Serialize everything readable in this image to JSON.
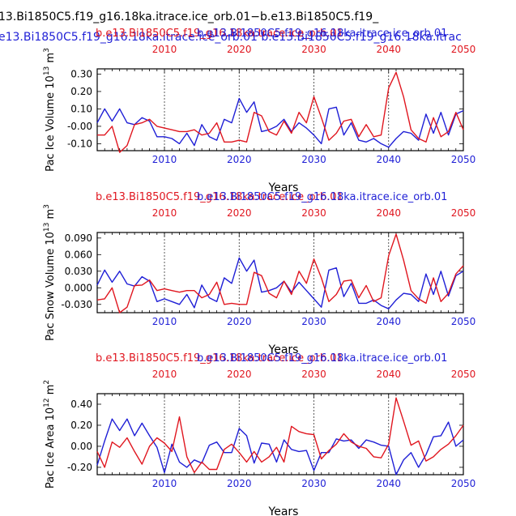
{
  "figure": {
    "title_line1": "13.Bi1850C5.f19_g16.18ka.itrace.ice_orb.01−b.e13.Bi1850C5.f19_",
    "title_line2": "e13.Bi1850C5.f19_g16.18ka.itrace.ice_orb.01 b.e13.Bi1850C5.f19_g16.18ka.itrac"
  },
  "colors": {
    "blue": "#1f1fd6",
    "red": "#e0161f",
    "black": "#000000"
  },
  "chart_data": [
    {
      "type": "line",
      "title_red": "b.e13.Bi1850C5.f19_g16.18ka.trace.ice_orb.01",
      "title_blue": "b.e13.Bi1850C5.f19_g16.18ka.itrace.ice_orb.01",
      "ylabel": "Pac Ice Volume 10",
      "ylabel_sup": "13",
      "ylabel_unit": " m",
      "ylabel_unit_sup": "3",
      "xlabel": "Years",
      "xlim": [
        2001,
        2050
      ],
      "ylim": [
        -0.14,
        0.33
      ],
      "yticks": [
        "-0.10",
        "-0.00",
        "0.10",
        "0.20",
        "0.30"
      ],
      "ytick_values": [
        -0.1,
        0.0,
        0.1,
        0.2,
        0.3
      ],
      "xticks": [
        "2010",
        "2020",
        "2030",
        "2040",
        "2050"
      ],
      "xtick_values": [
        2010,
        2020,
        2030,
        2040,
        2050
      ],
      "x": [
        2001,
        2002,
        2003,
        2004,
        2005,
        2006,
        2007,
        2008,
        2009,
        2010,
        2011,
        2012,
        2013,
        2014,
        2015,
        2016,
        2017,
        2018,
        2019,
        2020,
        2021,
        2022,
        2023,
        2024,
        2025,
        2026,
        2027,
        2028,
        2029,
        2030,
        2031,
        2032,
        2033,
        2034,
        2035,
        2036,
        2037,
        2038,
        2039,
        2040,
        2041,
        2042,
        2043,
        2044,
        2045,
        2046,
        2047,
        2048,
        2049,
        2050
      ],
      "series": [
        {
          "name": "blue",
          "color": "#1f1fd6",
          "values": [
            0.02,
            0.1,
            0.03,
            0.1,
            0.02,
            0.01,
            0.05,
            0.03,
            -0.06,
            -0.06,
            -0.07,
            -0.1,
            -0.04,
            -0.11,
            0.01,
            -0.06,
            -0.08,
            0.04,
            0.02,
            0.16,
            0.08,
            0.14,
            -0.03,
            -0.02,
            0.0,
            0.04,
            -0.03,
            0.02,
            -0.01,
            -0.05,
            -0.1,
            0.1,
            0.11,
            -0.05,
            0.02,
            -0.08,
            -0.09,
            -0.07,
            -0.1,
            -0.12,
            -0.07,
            -0.03,
            -0.04,
            -0.08,
            0.07,
            -0.04,
            0.08,
            -0.05,
            0.07,
            0.09
          ]
        },
        {
          "name": "red",
          "color": "#e0161f",
          "values": [
            -0.05,
            -0.05,
            0.0,
            -0.15,
            -0.11,
            0.01,
            0.02,
            0.04,
            0.0,
            -0.01,
            -0.02,
            -0.03,
            -0.03,
            -0.02,
            -0.05,
            -0.04,
            0.02,
            -0.09,
            -0.09,
            -0.08,
            -0.09,
            0.08,
            0.06,
            -0.03,
            -0.05,
            0.03,
            -0.04,
            0.08,
            0.02,
            0.17,
            0.05,
            -0.08,
            -0.04,
            0.03,
            0.04,
            -0.06,
            0.01,
            -0.06,
            -0.05,
            0.22,
            0.31,
            0.17,
            -0.02,
            -0.07,
            -0.09,
            0.05,
            -0.06,
            -0.03,
            0.08,
            -0.02
          ]
        }
      ]
    },
    {
      "type": "line",
      "title_red": "b.e13.Bi1850C5.f19_g16.18ka.trace.ice_orb.01",
      "title_blue": "b.e13.Bi1850C5.f19_g16.18ka.itrace.ice_orb.01",
      "ylabel": "Pac Snow Volume 10",
      "ylabel_sup": "13",
      "ylabel_unit": " m",
      "ylabel_unit_sup": "3",
      "xlabel": "Years",
      "xlim": [
        2001,
        2050
      ],
      "ylim": [
        -0.045,
        0.1
      ],
      "yticks": [
        "-0.030",
        "0.000",
        "0.030",
        "0.060",
        "0.090"
      ],
      "ytick_values": [
        -0.03,
        0.0,
        0.03,
        0.06,
        0.09
      ],
      "xticks": [
        "2010",
        "2020",
        "2030",
        "2040",
        "2050"
      ],
      "xtick_values": [
        2010,
        2020,
        2030,
        2040,
        2050
      ],
      "x": [
        2001,
        2002,
        2003,
        2004,
        2005,
        2006,
        2007,
        2008,
        2009,
        2010,
        2011,
        2012,
        2013,
        2014,
        2015,
        2016,
        2017,
        2018,
        2019,
        2020,
        2021,
        2022,
        2023,
        2024,
        2025,
        2026,
        2027,
        2028,
        2029,
        2030,
        2031,
        2032,
        2033,
        2034,
        2035,
        2036,
        2037,
        2038,
        2039,
        2040,
        2041,
        2042,
        2043,
        2044,
        2045,
        2046,
        2047,
        2048,
        2049,
        2050
      ],
      "series": [
        {
          "name": "blue",
          "color": "#1f1fd6",
          "values": [
            0.005,
            0.032,
            0.01,
            0.03,
            0.007,
            0.003,
            0.02,
            0.012,
            -0.025,
            -0.02,
            -0.025,
            -0.03,
            -0.012,
            -0.036,
            0.005,
            -0.018,
            -0.025,
            0.018,
            0.008,
            0.054,
            0.03,
            0.05,
            -0.008,
            -0.005,
            0.0,
            0.012,
            -0.008,
            0.01,
            -0.005,
            -0.02,
            -0.035,
            0.032,
            0.036,
            -0.016,
            0.008,
            -0.028,
            -0.028,
            -0.022,
            -0.032,
            -0.038,
            -0.022,
            -0.01,
            -0.012,
            -0.025,
            0.025,
            -0.012,
            0.03,
            -0.015,
            0.022,
            0.03
          ]
        },
        {
          "name": "red",
          "color": "#e0161f",
          "values": [
            -0.022,
            -0.02,
            0.0,
            -0.045,
            -0.035,
            0.004,
            0.005,
            0.014,
            -0.005,
            -0.002,
            -0.005,
            -0.008,
            -0.005,
            -0.005,
            -0.018,
            -0.012,
            0.01,
            -0.03,
            -0.028,
            -0.03,
            -0.03,
            0.028,
            0.022,
            -0.01,
            -0.018,
            0.012,
            -0.012,
            0.03,
            0.008,
            0.052,
            0.018,
            -0.025,
            -0.012,
            0.012,
            0.014,
            -0.018,
            0.004,
            -0.025,
            -0.018,
            0.058,
            0.097,
            0.05,
            -0.005,
            -0.02,
            -0.028,
            0.018,
            -0.025,
            -0.01,
            0.025,
            0.04
          ]
        }
      ]
    },
    {
      "type": "line",
      "title_red": "b.e13.Bi1850C5.f19_g16.18ka.trace.ice_orb.01",
      "title_blue": "b.e13.Bi1850C5.f19_g16.18ka.itrace.ice_orb.01",
      "ylabel": "Pac Ice Area 10",
      "ylabel_sup": "12",
      "ylabel_unit": " m",
      "ylabel_unit_sup": "2",
      "xlabel": "Years",
      "xlim": [
        2001,
        2050
      ],
      "ylim": [
        -0.27,
        0.5
      ],
      "yticks": [
        "-0.20",
        "0.00",
        "0.20",
        "0.40"
      ],
      "ytick_values": [
        -0.2,
        0.0,
        0.2,
        0.4
      ],
      "xticks": [
        "2010",
        "2020",
        "2030",
        "2040",
        "2050"
      ],
      "xtick_values": [
        2010,
        2020,
        2030,
        2040,
        2050
      ],
      "x": [
        2001,
        2002,
        2003,
        2004,
        2005,
        2006,
        2007,
        2008,
        2009,
        2010,
        2011,
        2012,
        2013,
        2014,
        2015,
        2016,
        2017,
        2018,
        2019,
        2020,
        2021,
        2022,
        2023,
        2024,
        2025,
        2026,
        2027,
        2028,
        2029,
        2030,
        2031,
        2032,
        2033,
        2034,
        2035,
        2036,
        2037,
        2038,
        2039,
        2040,
        2041,
        2042,
        2043,
        2044,
        2045,
        2046,
        2047,
        2048,
        2049,
        2050
      ],
      "series": [
        {
          "name": "blue",
          "color": "#1f1fd6",
          "values": [
            -0.18,
            0.05,
            0.26,
            0.15,
            0.26,
            0.1,
            0.22,
            0.1,
            -0.01,
            -0.25,
            0.02,
            -0.15,
            -0.2,
            -0.13,
            -0.16,
            0.01,
            0.04,
            -0.06,
            -0.06,
            0.17,
            0.1,
            -0.16,
            0.03,
            0.02,
            -0.15,
            0.06,
            -0.03,
            -0.05,
            -0.04,
            -0.23,
            -0.06,
            -0.06,
            0.07,
            0.05,
            0.06,
            -0.02,
            0.06,
            0.04,
            0.01,
            0.0,
            -0.27,
            -0.13,
            -0.06,
            -0.2,
            -0.08,
            0.09,
            0.1,
            0.23,
            0.0,
            0.06
          ]
        },
        {
          "name": "red",
          "color": "#e0161f",
          "values": [
            -0.05,
            -0.2,
            0.04,
            -0.01,
            0.08,
            -0.05,
            -0.17,
            0.0,
            0.08,
            0.03,
            -0.05,
            0.28,
            -0.1,
            -0.25,
            -0.15,
            -0.22,
            -0.22,
            -0.03,
            0.02,
            -0.06,
            -0.15,
            -0.05,
            -0.15,
            -0.1,
            -0.01,
            -0.15,
            0.19,
            0.14,
            0.12,
            0.11,
            -0.12,
            -0.04,
            0.02,
            0.12,
            0.04,
            0.0,
            -0.02,
            -0.1,
            -0.11,
            0.02,
            0.46,
            0.24,
            0.01,
            0.05,
            -0.14,
            -0.1,
            -0.03,
            0.02,
            0.1,
            0.2
          ]
        }
      ]
    }
  ]
}
